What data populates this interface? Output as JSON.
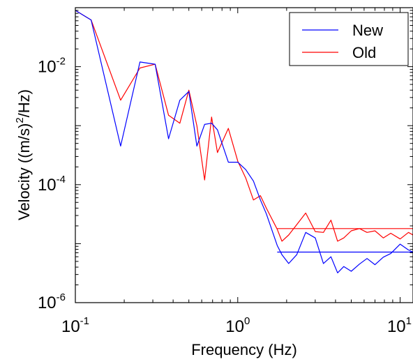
{
  "chart_data": {
    "type": "line",
    "title": "",
    "xlabel": "Frequency (Hz)",
    "ylabel_parts": {
      "pre": "Velocity ((m/s)",
      "sup": "2",
      "post": "/Hz)"
    },
    "xscale": "log",
    "yscale": "log",
    "xlim": [
      0.1,
      12
    ],
    "ylim": [
      1e-06,
      0.1
    ],
    "x_ticks": [
      {
        "value": 0.1,
        "base": "10",
        "exp": "-1"
      },
      {
        "value": 1,
        "base": "10",
        "exp": "0"
      },
      {
        "value": 10,
        "base": "10",
        "exp": "1"
      }
    ],
    "y_ticks": [
      {
        "value": 0.01,
        "base": "10",
        "exp": "-2"
      },
      {
        "value": 0.0001,
        "base": "10",
        "exp": "-4"
      },
      {
        "value": 1e-06,
        "base": "10",
        "exp": "-6"
      }
    ],
    "grid": false,
    "legend_position": "top-right",
    "series": [
      {
        "name": "New",
        "color": "#0000ff",
        "x": [
          0.1,
          0.125,
          0.19,
          0.25,
          0.31,
          0.375,
          0.44,
          0.5,
          0.56,
          0.625,
          0.69,
          0.75,
          0.875,
          1.0,
          1.12,
          1.25,
          1.38,
          1.5,
          1.75,
          1.87,
          2.06,
          2.31,
          2.62,
          3.0,
          3.37,
          3.75,
          4.12,
          4.5,
          5.0,
          5.62,
          6.25,
          7.0,
          7.87,
          8.75,
          10.0,
          11.25,
          12.0
        ],
        "y": [
          0.09,
          0.062,
          0.00045,
          0.012,
          0.011,
          0.0006,
          0.0027,
          0.0038,
          0.00045,
          0.00105,
          0.0011,
          0.00085,
          0.00024,
          0.00024,
          0.00018,
          0.000115,
          5.5e-05,
          3.2e-05,
          9.3e-06,
          6.5e-06,
          4.6e-06,
          6.5e-06,
          1.55e-05,
          1.25e-05,
          4.6e-06,
          6e-06,
          3.2e-06,
          4.1e-06,
          3.4e-06,
          4.5e-06,
          5.6e-06,
          4.4e-06,
          5.9e-06,
          6.8e-06,
          9.8e-06,
          7.8e-06,
          7.2e-06
        ]
      },
      {
        "name": "Old",
        "color": "#ff0000",
        "x": [
          0.1,
          0.125,
          0.19,
          0.25,
          0.31,
          0.375,
          0.44,
          0.5,
          0.56,
          0.625,
          0.69,
          0.75,
          0.875,
          1.0,
          1.12,
          1.25,
          1.38,
          1.5,
          1.75,
          1.87,
          2.06,
          2.31,
          2.62,
          3.0,
          3.37,
          3.75,
          4.12,
          4.5,
          5.0,
          5.62,
          6.25,
          7.0,
          7.87,
          8.75,
          10.0,
          11.25,
          12.0
        ],
        "y": [
          0.09,
          0.062,
          0.0027,
          0.0095,
          0.011,
          0.0015,
          0.0011,
          0.004,
          0.001,
          0.00012,
          0.0014,
          0.00035,
          0.0009,
          0.00025,
          0.00013,
          5.5e-05,
          6.5e-05,
          4e-05,
          1.75e-05,
          1.1e-05,
          1.4e-05,
          2.1e-05,
          3.3e-05,
          1.6e-05,
          1.55e-05,
          2.5e-05,
          1.1e-05,
          1.25e-05,
          1.65e-05,
          1.8e-05,
          1.55e-05,
          1.65e-05,
          1.25e-05,
          1.5e-05,
          1.2e-05,
          1.55e-05,
          1.4e-05
        ]
      }
    ],
    "reference_lines": [
      {
        "x": [
          1.75,
          12.0
        ],
        "y": [
          7.2e-06,
          7.2e-06
        ],
        "color": "#0000ff"
      },
      {
        "x": [
          1.75,
          12.0
        ],
        "y": [
          1.8e-05,
          1.8e-05
        ],
        "color": "#ff0000"
      }
    ]
  }
}
